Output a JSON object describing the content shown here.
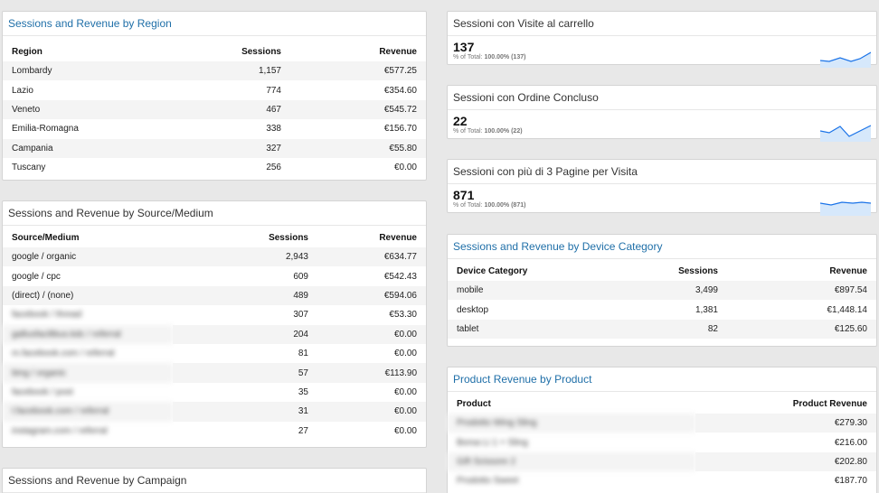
{
  "region": {
    "title": "Sessions and Revenue by Region",
    "headers": [
      "Region",
      "Sessions",
      "Revenue"
    ],
    "rows": [
      [
        "Lombardy",
        "1,157",
        "€577.25"
      ],
      [
        "Lazio",
        "774",
        "€354.60"
      ],
      [
        "Veneto",
        "467",
        "€545.72"
      ],
      [
        "Emilia-Romagna",
        "338",
        "€156.70"
      ],
      [
        "Campania",
        "327",
        "€55.80"
      ],
      [
        "Tuscany",
        "256",
        "€0.00"
      ]
    ]
  },
  "source": {
    "title": "Sessions and Revenue by Source/Medium",
    "headers": [
      "Source/Medium",
      "Sessions",
      "Revenue"
    ],
    "rows": [
      [
        "google / organic",
        "2,943",
        "€634.77"
      ],
      [
        "google / cpc",
        "609",
        "€542.43"
      ],
      [
        "(direct) / (none)",
        "489",
        "€594.06"
      ],
      [
        "facebook / thread",
        "307",
        "€53.30"
      ],
      [
        "gallusfacilibus.kdc / referral",
        "204",
        "€0.00"
      ],
      [
        "m.facebook.com / referral",
        "81",
        "€0.00"
      ],
      [
        "bing / organic",
        "57",
        "€113.90"
      ],
      [
        "facebook / post",
        "35",
        "€0.00"
      ],
      [
        "l.facebook.com / referral",
        "31",
        "€0.00"
      ],
      [
        "instagram.com / referral",
        "27",
        "€0.00"
      ]
    ]
  },
  "campaign": {
    "title": "Sessions and Revenue by Campaign"
  },
  "scorecards": [
    {
      "title": "Sessioni con Visite al carrello",
      "value": "137",
      "sub_label": "% of Total:",
      "sub_value": "100.00% (137)"
    },
    {
      "title": "Sessioni con Ordine Concluso",
      "value": "22",
      "sub_label": "% of Total:",
      "sub_value": "100.00% (22)"
    },
    {
      "title": "Sessioni con più di 3 Pagine per Visita",
      "value": "871",
      "sub_label": "% of Total:",
      "sub_value": "100.00% (871)"
    }
  ],
  "device": {
    "title": "Sessions and Revenue by Device Category",
    "headers": [
      "Device Category",
      "Sessions",
      "Revenue"
    ],
    "rows": [
      [
        "mobile",
        "3,499",
        "€897.54"
      ],
      [
        "desktop",
        "1,381",
        "€1,448.14"
      ],
      [
        "tablet",
        "82",
        "€125.60"
      ]
    ]
  },
  "product": {
    "title": "Product Revenue by Product",
    "headers": [
      "Product",
      "Product Revenue"
    ],
    "rows": [
      [
        "Prodotto Wing Sling",
        "€279.30"
      ],
      [
        "Borsa Li 1 + Sling",
        "€216.00"
      ],
      [
        "Gift Scissore 2",
        "€202.80"
      ],
      [
        "Prodotto Sweet",
        "€187.70"
      ]
    ]
  },
  "colors": {
    "link_title": "#1f6fa8",
    "spark_line": "#1a73e8",
    "spark_fill": "#d6e8fb",
    "stripe": "#f4f4f4"
  }
}
